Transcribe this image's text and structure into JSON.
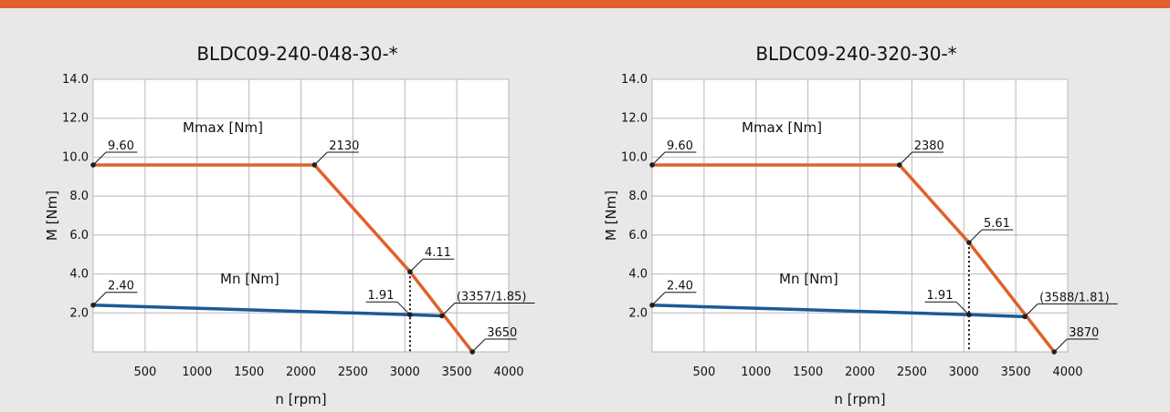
{
  "colors": {
    "accent_bar": "#e0612a",
    "background": "#e8e8e8",
    "plot_bg": "#ffffff",
    "grid": "#b8b8b8",
    "mmax_line": "#e0612a",
    "mn_line": "#1a5a96",
    "marker": "#222222",
    "text": "#111111"
  },
  "chart_data": [
    {
      "type": "line",
      "title": "BLDC09-240-048-30-*",
      "xlabel": "n [rpm]",
      "ylabel": "M [Nm]",
      "xlim": [
        0,
        4000
      ],
      "ylim": [
        0,
        14
      ],
      "x_ticks": [
        "500",
        "1000",
        "1500",
        "2000",
        "2500",
        "3000",
        "3500",
        "4000"
      ],
      "y_ticks": [
        "2.0",
        "4.0",
        "6.0",
        "8.0",
        "10.0",
        "12.0",
        "14.0"
      ],
      "grid": true,
      "series": [
        {
          "name": "Mmax [Nm]",
          "color_key": "mmax_line",
          "x": [
            0,
            2130,
            3050,
            3650
          ],
          "y": [
            9.6,
            9.6,
            4.11,
            0
          ]
        },
        {
          "name": "Mn [Nm]",
          "color_key": "mn_line",
          "x": [
            0,
            3050,
            3357
          ],
          "y": [
            2.4,
            1.91,
            1.85
          ]
        }
      ],
      "operating_speed": 3050,
      "annotations": [
        {
          "text": "9.60",
          "x": 0,
          "y": 9.6,
          "side": "right"
        },
        {
          "text": "2130",
          "x": 2130,
          "y": 9.6,
          "side": "right"
        },
        {
          "text": "4.11",
          "x": 3050,
          "y": 4.11,
          "side": "right"
        },
        {
          "text": "3650",
          "x": 3650,
          "y": 0,
          "side": "right"
        },
        {
          "text": "2.40",
          "x": 0,
          "y": 2.4,
          "side": "right"
        },
        {
          "text": "(3357/1.85)",
          "x": 3357,
          "y": 1.85,
          "side": "right"
        },
        {
          "text": "1.91",
          "x": 3050,
          "y": 1.91,
          "side": "left"
        }
      ]
    },
    {
      "type": "line",
      "title": "BLDC09-240-320-30-*",
      "xlabel": "n [rpm]",
      "ylabel": "M [Nm]",
      "xlim": [
        0,
        4000
      ],
      "ylim": [
        0,
        14
      ],
      "x_ticks": [
        "500",
        "1000",
        "1500",
        "2000",
        "2500",
        "3000",
        "3500",
        "4000"
      ],
      "y_ticks": [
        "2.0",
        "4.0",
        "6.0",
        "8.0",
        "10.0",
        "12.0",
        "14.0"
      ],
      "grid": true,
      "series": [
        {
          "name": "Mmax [Nm]",
          "color_key": "mmax_line",
          "x": [
            0,
            2380,
            3050,
            3870
          ],
          "y": [
            9.6,
            9.6,
            5.61,
            0
          ]
        },
        {
          "name": "Mn [Nm]",
          "color_key": "mn_line",
          "x": [
            0,
            3050,
            3588
          ],
          "y": [
            2.4,
            1.91,
            1.81
          ]
        }
      ],
      "operating_speed": 3050,
      "annotations": [
        {
          "text": "9.60",
          "x": 0,
          "y": 9.6,
          "side": "right"
        },
        {
          "text": "2380",
          "x": 2380,
          "y": 9.6,
          "side": "right"
        },
        {
          "text": "5.61",
          "x": 3050,
          "y": 5.61,
          "side": "right"
        },
        {
          "text": "3870",
          "x": 3870,
          "y": 0,
          "side": "right"
        },
        {
          "text": "2.40",
          "x": 0,
          "y": 2.4,
          "side": "right"
        },
        {
          "text": "(3588/1.81)",
          "x": 3588,
          "y": 1.81,
          "side": "right"
        },
        {
          "text": "1.91",
          "x": 3050,
          "y": 1.91,
          "side": "left"
        }
      ]
    }
  ]
}
